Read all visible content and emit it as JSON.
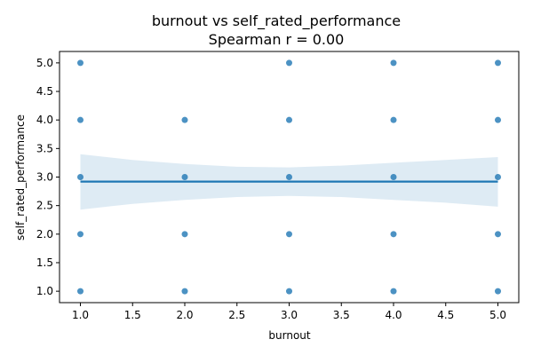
{
  "chart_data": {
    "type": "scatter",
    "title": "burnout vs self_rated_performance",
    "subtitle": "Spearman r = 0.00",
    "xlabel": "burnout",
    "ylabel": "self_rated_performance",
    "xlim": [
      0.8,
      5.2
    ],
    "ylim": [
      0.8,
      5.2
    ],
    "xticks": [
      1.0,
      1.5,
      2.0,
      2.5,
      3.0,
      3.5,
      4.0,
      4.5,
      5.0
    ],
    "yticks": [
      1.0,
      1.5,
      2.0,
      2.5,
      3.0,
      3.5,
      4.0,
      4.5,
      5.0
    ],
    "grid": false,
    "colors": {
      "points": "#1f77b4",
      "line": "#1f77b4",
      "band": "#1f77b4"
    },
    "points": [
      {
        "x": 1,
        "y": 5
      },
      {
        "x": 1,
        "y": 4
      },
      {
        "x": 1,
        "y": 3
      },
      {
        "x": 1,
        "y": 2
      },
      {
        "x": 1,
        "y": 1
      },
      {
        "x": 2,
        "y": 4
      },
      {
        "x": 2,
        "y": 3
      },
      {
        "x": 2,
        "y": 2
      },
      {
        "x": 2,
        "y": 1
      },
      {
        "x": 3,
        "y": 5
      },
      {
        "x": 3,
        "y": 4
      },
      {
        "x": 3,
        "y": 3
      },
      {
        "x": 3,
        "y": 2
      },
      {
        "x": 3,
        "y": 1
      },
      {
        "x": 4,
        "y": 5
      },
      {
        "x": 4,
        "y": 4
      },
      {
        "x": 4,
        "y": 3
      },
      {
        "x": 4,
        "y": 2
      },
      {
        "x": 4,
        "y": 1
      },
      {
        "x": 5,
        "y": 5
      },
      {
        "x": 5,
        "y": 4
      },
      {
        "x": 5,
        "y": 3
      },
      {
        "x": 5,
        "y": 2
      },
      {
        "x": 5,
        "y": 1
      }
    ],
    "regression": {
      "x": [
        1.0,
        5.0
      ],
      "y": [
        2.92,
        2.92
      ]
    },
    "confidence_band": {
      "x": [
        1.0,
        1.5,
        2.0,
        2.5,
        3.0,
        3.5,
        4.0,
        4.5,
        5.0
      ],
      "upper": [
        3.4,
        3.3,
        3.23,
        3.18,
        3.17,
        3.2,
        3.25,
        3.3,
        3.35
      ],
      "lower": [
        2.43,
        2.53,
        2.6,
        2.65,
        2.67,
        2.65,
        2.6,
        2.55,
        2.48
      ]
    }
  }
}
